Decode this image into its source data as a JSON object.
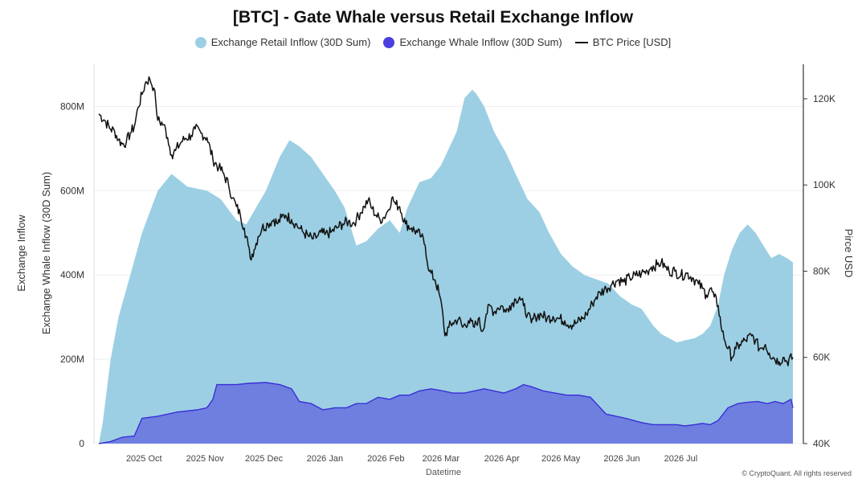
{
  "chart_data": {
    "type": "area",
    "title": "[BTC] - Gate Whale versus Retail Exchange Inflow",
    "xlabel": "Datetime",
    "ylabel_left": [
      "Exchange Inflow",
      "Exchange Whale Inflow (30D Sum)"
    ],
    "ylabel_right": "Pirce USD",
    "y_left_ticks": [
      "0",
      "200M",
      "400M",
      "600M",
      "800M"
    ],
    "y_right_ticks": [
      "40K",
      "60K",
      "80K",
      "100K",
      "120K"
    ],
    "x_ticks": [
      "2025 Oct",
      "2025 Nov",
      "2025 Dec",
      "2026 Jan",
      "2026 Feb",
      "2026 Mar",
      "2026 Apr",
      "2026 May",
      "2026 Jun",
      "2026 Jul"
    ],
    "ylim_left": [
      0,
      900000000
    ],
    "ylim_right": [
      40000,
      128000
    ],
    "legend_position": "top-center",
    "grid": true,
    "colors": {
      "retail": "#9ccfe3",
      "whale": "#6e7fe0",
      "whale_line": "#3a2fd6",
      "price": "#111111",
      "whale_legend": "#4b3fe0"
    },
    "series": [
      {
        "name": "Exchange Retail Inflow (30D Sum)",
        "axis": "left",
        "points": [
          [
            0,
            0
          ],
          [
            2,
            50
          ],
          [
            6,
            200
          ],
          [
            10,
            300
          ],
          [
            16,
            400
          ],
          [
            22,
            500
          ],
          [
            30,
            600
          ],
          [
            37,
            640
          ],
          [
            45,
            610
          ],
          [
            55,
            600
          ],
          [
            62,
            580
          ],
          [
            70,
            530
          ],
          [
            75,
            520
          ],
          [
            80,
            560
          ],
          [
            85,
            600
          ],
          [
            92,
            680
          ],
          [
            97,
            720
          ],
          [
            102,
            705
          ],
          [
            108,
            680
          ],
          [
            114,
            640
          ],
          [
            120,
            600
          ],
          [
            125,
            560
          ],
          [
            131,
            470
          ],
          [
            136,
            480
          ],
          [
            142,
            510
          ],
          [
            148,
            530
          ],
          [
            153,
            500
          ],
          [
            157,
            560
          ],
          [
            163,
            620
          ],
          [
            169,
            630
          ],
          [
            174,
            660
          ],
          [
            182,
            740
          ],
          [
            186,
            820
          ],
          [
            190,
            840
          ],
          [
            192,
            830
          ],
          [
            196,
            800
          ],
          [
            201,
            740
          ],
          [
            207,
            690
          ],
          [
            212,
            640
          ],
          [
            218,
            580
          ],
          [
            224,
            550
          ],
          [
            229,
            500
          ],
          [
            235,
            450
          ],
          [
            241,
            420
          ],
          [
            247,
            400
          ],
          [
            253,
            390
          ],
          [
            259,
            380
          ],
          [
            265,
            350
          ],
          [
            271,
            330
          ],
          [
            276,
            320
          ],
          [
            282,
            280
          ],
          [
            286,
            260
          ],
          [
            290,
            250
          ],
          [
            294,
            240
          ],
          [
            298,
            245
          ],
          [
            303,
            250
          ],
          [
            307,
            260
          ],
          [
            311,
            280
          ],
          [
            315,
            330
          ],
          [
            318,
            400
          ],
          [
            322,
            460
          ],
          [
            326,
            500
          ],
          [
            330,
            520
          ],
          [
            334,
            500
          ],
          [
            338,
            470
          ],
          [
            342,
            440
          ],
          [
            346,
            450
          ],
          [
            350,
            440
          ],
          [
            353,
            430
          ]
        ]
      },
      {
        "name": "Exchange Whale Inflow (30D Sum)",
        "axis": "left",
        "points": [
          [
            0,
            0
          ],
          [
            6,
            5
          ],
          [
            12,
            15
          ],
          [
            18,
            18
          ],
          [
            22,
            60
          ],
          [
            30,
            65
          ],
          [
            40,
            75
          ],
          [
            50,
            80
          ],
          [
            55,
            85
          ],
          [
            58,
            105
          ],
          [
            60,
            140
          ],
          [
            70,
            140
          ],
          [
            76,
            143
          ],
          [
            85,
            145
          ],
          [
            92,
            140
          ],
          [
            98,
            130
          ],
          [
            102,
            100
          ],
          [
            108,
            95
          ],
          [
            114,
            80
          ],
          [
            120,
            85
          ],
          [
            126,
            85
          ],
          [
            131,
            95
          ],
          [
            136,
            95
          ],
          [
            142,
            110
          ],
          [
            148,
            105
          ],
          [
            153,
            115
          ],
          [
            158,
            115
          ],
          [
            163,
            125
          ],
          [
            169,
            130
          ],
          [
            175,
            125
          ],
          [
            180,
            120
          ],
          [
            186,
            120
          ],
          [
            191,
            125
          ],
          [
            196,
            130
          ],
          [
            201,
            125
          ],
          [
            206,
            120
          ],
          [
            212,
            130
          ],
          [
            216,
            140
          ],
          [
            220,
            135
          ],
          [
            226,
            125
          ],
          [
            232,
            120
          ],
          [
            238,
            115
          ],
          [
            244,
            115
          ],
          [
            250,
            110
          ],
          [
            254,
            90
          ],
          [
            258,
            70
          ],
          [
            263,
            65
          ],
          [
            268,
            60
          ],
          [
            272,
            55
          ],
          [
            276,
            50
          ],
          [
            282,
            45
          ],
          [
            288,
            45
          ],
          [
            294,
            45
          ],
          [
            298,
            42
          ],
          [
            303,
            45
          ],
          [
            307,
            48
          ],
          [
            311,
            45
          ],
          [
            315,
            55
          ],
          [
            320,
            85
          ],
          [
            325,
            95
          ],
          [
            330,
            98
          ],
          [
            335,
            100
          ],
          [
            340,
            95
          ],
          [
            344,
            100
          ],
          [
            348,
            95
          ],
          [
            352,
            105
          ],
          [
            353,
            85
          ]
        ]
      },
      {
        "name": "BTC Price [USD]",
        "axis": "right",
        "points": [
          [
            0,
            116500
          ],
          [
            3,
            115000
          ],
          [
            6,
            113000
          ],
          [
            8,
            112500
          ],
          [
            10,
            110500
          ],
          [
            12,
            109500
          ],
          [
            14,
            110000
          ],
          [
            16,
            112000
          ],
          [
            18,
            113500
          ],
          [
            20,
            118000
          ],
          [
            22,
            121000
          ],
          [
            24,
            124000
          ],
          [
            26,
            124500
          ],
          [
            28,
            122500
          ],
          [
            29,
            119000
          ],
          [
            30,
            115000
          ],
          [
            33,
            114000
          ],
          [
            35,
            111000
          ],
          [
            37,
            107000
          ],
          [
            39,
            108000
          ],
          [
            42,
            110000
          ],
          [
            44,
            110800
          ],
          [
            47,
            111500
          ],
          [
            49,
            113000
          ],
          [
            52,
            112000
          ],
          [
            55,
            111000
          ],
          [
            58,
            106000
          ],
          [
            61,
            104000
          ],
          [
            63,
            103000
          ],
          [
            66,
            100000
          ],
          [
            68,
            97000
          ],
          [
            70,
            95000
          ],
          [
            72,
            93000
          ],
          [
            74,
            90000
          ],
          [
            76,
            86000
          ],
          [
            77,
            83000
          ],
          [
            79,
            85000
          ],
          [
            81,
            88000
          ],
          [
            83,
            90000
          ],
          [
            86,
            91000
          ],
          [
            89,
            92000
          ],
          [
            91,
            91000
          ],
          [
            93,
            92500
          ],
          [
            95,
            93000
          ],
          [
            98,
            92000
          ],
          [
            100,
            91000
          ],
          [
            102,
            90000
          ],
          [
            104,
            89000
          ],
          [
            107,
            88000
          ],
          [
            109,
            87500
          ],
          [
            111,
            88000
          ],
          [
            113,
            89000
          ],
          [
            115,
            88500
          ],
          [
            118,
            89000
          ],
          [
            121,
            90000
          ],
          [
            124,
            91000
          ],
          [
            127,
            91500
          ],
          [
            129,
            91000
          ],
          [
            131,
            92000
          ],
          [
            133,
            93500
          ],
          [
            135,
            95000
          ],
          [
            137,
            96500
          ],
          [
            139,
            94500
          ],
          [
            141,
            93000
          ],
          [
            143,
            92000
          ],
          [
            145,
            92500
          ],
          [
            147,
            94000
          ],
          [
            149,
            97000
          ],
          [
            151,
            95500
          ],
          [
            153,
            95000
          ],
          [
            156,
            91000
          ],
          [
            159,
            90000
          ],
          [
            162,
            89000
          ],
          [
            164,
            88000
          ],
          [
            166,
            86000
          ],
          [
            168,
            80000
          ],
          [
            171,
            78000
          ],
          [
            173,
            75000
          ],
          [
            175,
            70000
          ],
          [
            176,
            65000
          ],
          [
            178,
            67000
          ],
          [
            180,
            68000
          ],
          [
            183,
            69000
          ],
          [
            185,
            67000
          ],
          [
            188,
            68500
          ],
          [
            191,
            67000
          ],
          [
            193,
            69000
          ],
          [
            195,
            66000
          ],
          [
            197,
            70000
          ],
          [
            199,
            72000
          ],
          [
            201,
            70500
          ],
          [
            203,
            71500
          ],
          [
            205,
            72000
          ],
          [
            207,
            70500
          ],
          [
            209,
            72000
          ],
          [
            212,
            73500
          ],
          [
            214,
            74000
          ],
          [
            216,
            72000
          ],
          [
            218,
            70000
          ],
          [
            220,
            68000
          ],
          [
            222,
            69500
          ],
          [
            225,
            70000
          ],
          [
            228,
            69000
          ],
          [
            231,
            69500
          ],
          [
            234,
            69000
          ],
          [
            237,
            68500
          ],
          [
            240,
            67500
          ],
          [
            243,
            68000
          ],
          [
            246,
            69000
          ],
          [
            248,
            70000
          ],
          [
            251,
            72500
          ],
          [
            253,
            74000
          ],
          [
            255,
            75000
          ],
          [
            258,
            76000
          ],
          [
            261,
            77000
          ],
          [
            264,
            78000
          ],
          [
            267,
            77500
          ],
          [
            270,
            78500
          ],
          [
            273,
            79000
          ],
          [
            276,
            79500
          ],
          [
            279,
            80000
          ],
          [
            281,
            81000
          ],
          [
            284,
            81500
          ],
          [
            286,
            82000
          ],
          [
            288,
            81000
          ],
          [
            290,
            80000
          ],
          [
            293,
            80000
          ],
          [
            296,
            79000
          ],
          [
            299,
            79500
          ],
          [
            302,
            78500
          ],
          [
            305,
            77000
          ],
          [
            307,
            76000
          ],
          [
            309,
            74500
          ],
          [
            311,
            76000
          ],
          [
            313,
            74000
          ],
          [
            315,
            72000
          ],
          [
            317,
            66000
          ],
          [
            320,
            62000
          ],
          [
            322,
            60000
          ],
          [
            324,
            62000
          ],
          [
            326,
            63000
          ],
          [
            329,
            64000
          ],
          [
            332,
            65000
          ],
          [
            334,
            64000
          ],
          [
            336,
            62000
          ],
          [
            339,
            63000
          ],
          [
            341,
            61000
          ],
          [
            343,
            60000
          ],
          [
            346,
            59000
          ],
          [
            348,
            60000
          ],
          [
            350,
            59000
          ],
          [
            353,
            60000
          ]
        ]
      }
    ],
    "watermark": "© CryptoQuant. All rights reserved"
  },
  "legend": {
    "retail": "Exchange Retail Inflow (30D Sum)",
    "whale": "Exchange Whale Inflow (30D Sum)",
    "price": "BTC Price [USD]"
  }
}
